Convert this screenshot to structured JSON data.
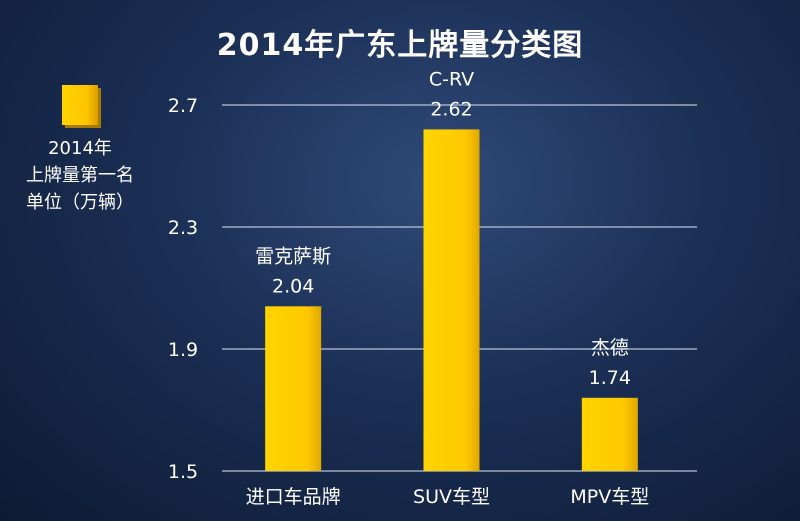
{
  "chart_data": {
    "type": "bar",
    "title": "2014年广东上牌量分类图",
    "categories": [
      "进口车品牌",
      "SUV车型",
      "MPV车型"
    ],
    "values": [
      2.04,
      2.62,
      1.74
    ],
    "annotations": [
      "雷克萨斯",
      "C-RV",
      "杰德"
    ],
    "value_labels": [
      "2.04",
      "2.62",
      "1.74"
    ],
    "yticks": [
      "1.5",
      "1.9",
      "2.3",
      "2.7"
    ],
    "ylim": [
      1.5,
      2.7
    ],
    "grid": true,
    "legend": {
      "position": "left",
      "lines": [
        "2014年",
        "上牌量第一名",
        "单位（万辆）"
      ]
    },
    "xlabel": "",
    "ylabel": "",
    "colors": {
      "bar": "#ffcc00",
      "grid": "#b8c2d6"
    }
  }
}
